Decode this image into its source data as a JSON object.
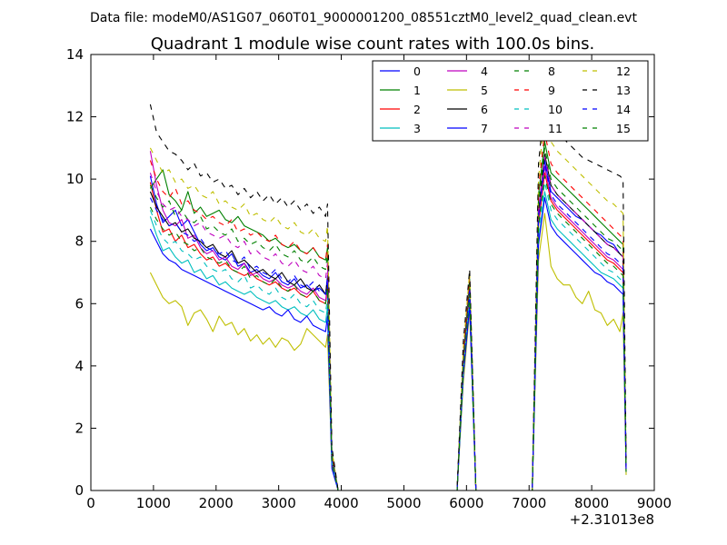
{
  "suptitle": "Data file: modeM0/AS1G07_060T01_9000001200_08551cztM0_level2_quad_clean.evt",
  "chart_data": {
    "type": "line",
    "title": "Quadrant 1 module wise count rates with 100.0s bins.",
    "xlabel": "",
    "ylabel": "",
    "x_offset_label": "+2.31013e8",
    "xlim": [
      0,
      9000
    ],
    "ylim": [
      0,
      14
    ],
    "xticks": [
      "0",
      "1000",
      "2000",
      "3000",
      "4000",
      "5000",
      "6000",
      "7000",
      "8000",
      "9000"
    ],
    "yticks": [
      "0",
      "2",
      "4",
      "6",
      "8",
      "10",
      "12",
      "14"
    ],
    "grid": false,
    "legend": {
      "placement": "top-right",
      "columns": 4
    },
    "x": [
      950,
      1050,
      1150,
      1250,
      1350,
      1450,
      1550,
      1650,
      1750,
      1850,
      1950,
      2050,
      2150,
      2250,
      2350,
      2450,
      2550,
      2650,
      2750,
      2850,
      2950,
      3050,
      3150,
      3250,
      3350,
      3450,
      3550,
      3650,
      3750,
      3780,
      3850,
      3950,
      4050,
      5850,
      5950,
      6050,
      6150,
      6250,
      7050,
      7150,
      7250,
      7350,
      7450,
      7550,
      7650,
      7750,
      7850,
      7950,
      8050,
      8150,
      8250,
      8350,
      8450,
      8500,
      8550
    ],
    "series": [
      {
        "name": "0",
        "color": "#0000ff",
        "dash": false,
        "values": [
          10.1,
          9.2,
          8.6,
          8.8,
          9.0,
          8.5,
          8.7,
          8.3,
          7.9,
          7.7,
          7.8,
          7.5,
          7.4,
          7.6,
          7.2,
          7.3,
          7.0,
          7.1,
          6.9,
          6.8,
          7.0,
          6.7,
          6.6,
          6.8,
          6.5,
          6.6,
          6.4,
          6.5,
          6.3,
          6.9,
          1.0,
          0.0,
          0.0,
          0.0,
          4.1,
          6.6,
          0.0,
          0.0,
          0.0,
          8.9,
          10.6,
          9.6,
          9.4,
          9.2,
          9.0,
          8.8,
          8.7,
          8.5,
          8.3,
          8.2,
          8.0,
          7.9,
          7.6,
          7.5,
          0.7
        ]
      },
      {
        "name": "1",
        "color": "#008000",
        "dash": false,
        "values": [
          9.7,
          10.0,
          10.3,
          9.5,
          9.3,
          9.0,
          9.6,
          8.9,
          9.1,
          8.8,
          8.9,
          9.0,
          8.7,
          8.6,
          8.8,
          8.5,
          8.4,
          8.3,
          8.2,
          8.0,
          8.1,
          7.9,
          7.8,
          7.9,
          7.7,
          7.6,
          7.8,
          7.5,
          7.4,
          7.8,
          1.2,
          0.0,
          0.0,
          0.0,
          4.3,
          6.8,
          0.0,
          0.0,
          0.0,
          9.5,
          11.2,
          10.2,
          10.0,
          9.8,
          9.6,
          9.4,
          9.2,
          9.0,
          8.8,
          8.6,
          8.4,
          8.2,
          8.0,
          7.9,
          0.6
        ]
      },
      {
        "name": "2",
        "color": "#ff0000",
        "dash": false,
        "values": [
          9.9,
          9.0,
          8.3,
          8.4,
          8.0,
          8.2,
          7.8,
          7.9,
          7.6,
          7.4,
          7.5,
          7.2,
          7.3,
          7.1,
          7.0,
          6.9,
          7.0,
          6.8,
          6.7,
          6.6,
          6.7,
          6.5,
          6.4,
          6.5,
          6.3,
          6.2,
          6.4,
          6.1,
          6.0,
          6.5,
          0.9,
          0.0,
          0.0,
          0.0,
          4.0,
          6.3,
          0.0,
          0.0,
          0.0,
          8.5,
          10.2,
          9.3,
          9.0,
          8.8,
          8.6,
          8.4,
          8.2,
          8.0,
          7.8,
          7.6,
          7.4,
          7.3,
          7.1,
          7.0,
          0.8
        ]
      },
      {
        "name": "3",
        "color": "#00bfbf",
        "dash": false,
        "values": [
          8.8,
          8.2,
          7.7,
          7.8,
          7.5,
          7.3,
          7.4,
          7.0,
          7.1,
          6.8,
          6.9,
          6.6,
          6.7,
          6.5,
          6.4,
          6.3,
          6.4,
          6.2,
          6.1,
          6.0,
          6.1,
          5.9,
          5.8,
          5.9,
          5.7,
          5.6,
          5.8,
          5.5,
          5.4,
          5.9,
          0.8,
          0.0,
          0.0,
          0.0,
          3.8,
          6.0,
          0.0,
          0.0,
          0.0,
          8.0,
          9.6,
          8.7,
          8.4,
          8.2,
          8.0,
          7.8,
          7.6,
          7.4,
          7.2,
          7.0,
          6.9,
          6.8,
          6.6,
          6.5,
          0.7
        ]
      },
      {
        "name": "4",
        "color": "#bf00bf",
        "dash": false,
        "values": [
          10.9,
          9.8,
          9.0,
          8.6,
          8.5,
          8.7,
          8.1,
          8.2,
          7.8,
          7.6,
          7.7,
          7.4,
          7.5,
          7.2,
          7.1,
          7.3,
          6.9,
          7.0,
          6.8,
          6.7,
          6.8,
          6.6,
          6.5,
          6.6,
          6.4,
          6.3,
          6.5,
          6.2,
          6.1,
          6.6,
          0.9,
          0.0,
          0.0,
          0.0,
          4.0,
          6.4,
          0.0,
          0.0,
          0.0,
          8.7,
          10.4,
          9.4,
          9.1,
          8.9,
          8.7,
          8.5,
          8.3,
          8.1,
          7.9,
          7.7,
          7.5,
          7.4,
          7.2,
          7.1,
          0.8
        ]
      },
      {
        "name": "5",
        "color": "#bfbf00",
        "dash": false,
        "values": [
          7.0,
          6.6,
          6.2,
          6.0,
          6.1,
          5.9,
          5.3,
          5.7,
          5.8,
          5.5,
          5.1,
          5.6,
          5.3,
          5.4,
          5.0,
          5.2,
          4.8,
          5.0,
          4.7,
          4.9,
          4.6,
          4.9,
          4.8,
          4.5,
          4.7,
          5.2,
          5.0,
          4.8,
          4.6,
          5.0,
          0.8,
          0.0,
          0.0,
          0.0,
          3.5,
          5.8,
          0.0,
          0.0,
          0.0,
          7.4,
          8.9,
          7.2,
          6.8,
          6.6,
          6.6,
          6.2,
          6.0,
          6.4,
          5.8,
          5.7,
          5.3,
          5.5,
          5.1,
          5.7,
          0.5
        ]
      },
      {
        "name": "6",
        "color": "#000000",
        "dash": false,
        "values": [
          9.6,
          9.1,
          8.8,
          8.5,
          8.6,
          8.3,
          8.4,
          8.1,
          8.0,
          7.8,
          7.9,
          7.6,
          7.5,
          7.7,
          7.3,
          7.4,
          7.2,
          7.0,
          7.1,
          6.9,
          6.8,
          7.0,
          6.7,
          6.6,
          6.8,
          6.5,
          6.4,
          6.6,
          6.3,
          6.8,
          1.0,
          0.0,
          0.0,
          0.0,
          4.2,
          6.7,
          0.0,
          0.0,
          0.0,
          9.0,
          10.8,
          9.8,
          9.5,
          9.3,
          9.1,
          8.9,
          8.7,
          8.5,
          8.3,
          8.1,
          7.9,
          7.8,
          7.6,
          7.5,
          0.8
        ]
      },
      {
        "name": "7",
        "color": "#0000ff",
        "dash": false,
        "values": [
          8.4,
          8.0,
          7.6,
          7.4,
          7.3,
          7.1,
          7.0,
          6.9,
          6.8,
          6.7,
          6.6,
          6.5,
          6.4,
          6.3,
          6.2,
          6.1,
          6.0,
          5.9,
          5.8,
          5.9,
          5.7,
          5.6,
          5.8,
          5.5,
          5.4,
          5.6,
          5.3,
          5.2,
          5.1,
          5.6,
          0.7,
          0.0,
          0.0,
          0.0,
          3.7,
          5.9,
          0.0,
          0.0,
          0.0,
          7.9,
          9.4,
          8.5,
          8.2,
          8.0,
          7.8,
          7.6,
          7.4,
          7.2,
          7.0,
          6.9,
          6.7,
          6.6,
          6.4,
          6.3,
          0.6
        ]
      },
      {
        "name": "8",
        "color": "#008000",
        "dash": true,
        "values": [
          9.8,
          9.4,
          9.1,
          9.3,
          8.8,
          9.0,
          8.7,
          8.6,
          8.8,
          8.4,
          8.5,
          8.3,
          8.2,
          8.4,
          8.0,
          8.1,
          7.9,
          8.0,
          7.8,
          7.7,
          7.9,
          7.6,
          7.5,
          7.7,
          7.4,
          7.3,
          7.5,
          7.2,
          7.1,
          7.6,
          1.1,
          0.0,
          0.0,
          0.0,
          4.2,
          6.7,
          0.0,
          0.0,
          0.0,
          9.2,
          11.0,
          10.0,
          9.7,
          9.5,
          9.3,
          9.1,
          8.9,
          8.7,
          8.5,
          8.3,
          8.1,
          8.0,
          7.8,
          7.7,
          0.7
        ]
      },
      {
        "name": "9",
        "color": "#ff0000",
        "dash": true,
        "values": [
          10.6,
          10.0,
          9.6,
          9.4,
          9.7,
          9.2,
          9.3,
          9.0,
          8.9,
          8.7,
          8.8,
          8.6,
          8.5,
          8.7,
          8.3,
          8.4,
          8.2,
          8.3,
          8.1,
          8.0,
          8.2,
          7.9,
          7.8,
          8.0,
          7.7,
          7.6,
          7.8,
          7.5,
          7.4,
          7.9,
          1.2,
          0.0,
          0.0,
          0.0,
          4.4,
          6.9,
          0.0,
          0.0,
          0.0,
          9.7,
          11.5,
          10.5,
          10.2,
          10.0,
          9.8,
          9.6,
          9.4,
          9.2,
          9.0,
          8.8,
          8.6,
          8.4,
          8.2,
          8.1,
          0.8
        ]
      },
      {
        "name": "10",
        "color": "#00bfbf",
        "dash": true,
        "values": [
          9.0,
          8.5,
          8.1,
          7.9,
          8.0,
          7.7,
          7.6,
          7.4,
          7.5,
          7.2,
          7.1,
          7.0,
          7.1,
          6.8,
          6.7,
          6.9,
          6.5,
          6.6,
          6.4,
          6.3,
          6.5,
          6.2,
          6.1,
          6.3,
          6.0,
          5.9,
          6.1,
          5.8,
          5.7,
          6.2,
          0.9,
          0.0,
          0.0,
          0.0,
          3.9,
          6.2,
          0.0,
          0.0,
          0.0,
          8.3,
          9.9,
          9.0,
          8.7,
          8.5,
          8.3,
          8.1,
          7.9,
          7.7,
          7.5,
          7.3,
          7.1,
          7.0,
          6.8,
          6.7,
          0.7
        ]
      },
      {
        "name": "11",
        "color": "#bf00bf",
        "dash": true,
        "values": [
          10.2,
          9.6,
          9.2,
          9.0,
          9.1,
          8.8,
          8.7,
          8.5,
          8.6,
          8.3,
          8.2,
          8.1,
          8.2,
          7.9,
          7.8,
          8.0,
          7.6,
          7.7,
          7.5,
          7.4,
          7.6,
          7.3,
          7.2,
          7.4,
          7.1,
          7.0,
          7.2,
          6.9,
          6.8,
          7.3,
          1.0,
          0.0,
          0.0,
          0.0,
          4.1,
          6.5,
          0.0,
          0.0,
          0.0,
          9.0,
          10.7,
          9.8,
          9.5,
          9.3,
          9.1,
          8.9,
          8.7,
          8.5,
          8.3,
          8.1,
          7.9,
          7.8,
          7.6,
          7.5,
          0.7
        ]
      },
      {
        "name": "12",
        "color": "#bfbf00",
        "dash": true,
        "values": [
          11.0,
          10.6,
          10.2,
          10.3,
          9.9,
          10.0,
          9.7,
          9.8,
          9.5,
          9.4,
          9.6,
          9.2,
          9.3,
          9.1,
          9.0,
          9.2,
          8.8,
          8.9,
          8.7,
          8.6,
          8.8,
          8.5,
          8.4,
          8.6,
          8.3,
          8.2,
          8.4,
          8.1,
          8.0,
          8.5,
          1.3,
          0.0,
          0.0,
          0.0,
          4.6,
          7.0,
          0.0,
          0.0,
          0.0,
          10.0,
          12.2,
          11.2,
          10.9,
          10.7,
          10.5,
          10.3,
          10.1,
          9.9,
          9.7,
          9.5,
          9.3,
          9.2,
          9.0,
          8.9,
          0.9
        ]
      },
      {
        "name": "13",
        "color": "#000000",
        "dash": true,
        "values": [
          12.4,
          11.5,
          11.2,
          10.9,
          10.8,
          10.6,
          10.3,
          10.5,
          10.1,
          10.2,
          9.9,
          10.0,
          9.7,
          9.8,
          9.5,
          9.7,
          9.4,
          9.6,
          9.3,
          9.5,
          9.2,
          9.4,
          9.1,
          9.3,
          9.0,
          9.2,
          8.9,
          9.1,
          8.8,
          9.2,
          1.4,
          0.0,
          0.0,
          0.0,
          4.8,
          7.1,
          0.0,
          0.0,
          0.0,
          10.5,
          12.5,
          11.8,
          11.5,
          11.3,
          11.1,
          10.9,
          10.7,
          10.6,
          10.5,
          10.4,
          10.3,
          10.2,
          10.1,
          10.0,
          1.0
        ]
      },
      {
        "name": "14",
        "color": "#0000ff",
        "dash": true,
        "values": [
          9.4,
          9.0,
          8.7,
          8.5,
          8.6,
          8.3,
          8.2,
          8.0,
          8.1,
          7.8,
          7.7,
          7.6,
          7.7,
          7.4,
          7.3,
          7.5,
          7.1,
          7.2,
          7.0,
          6.9,
          7.1,
          6.8,
          6.7,
          6.9,
          6.6,
          6.5,
          6.7,
          6.4,
          6.3,
          6.8,
          1.0,
          0.0,
          0.0,
          0.0,
          4.0,
          6.4,
          0.0,
          0.0,
          0.0,
          8.8,
          10.5,
          9.5,
          9.2,
          9.0,
          8.8,
          8.6,
          8.4,
          8.2,
          8.0,
          7.8,
          7.6,
          7.5,
          7.3,
          7.2,
          0.7
        ]
      },
      {
        "name": "15",
        "color": "#008000",
        "dash": true,
        "values": [
          9.1,
          8.7,
          8.4,
          8.2,
          8.3,
          8.0,
          7.9,
          7.7,
          7.8,
          7.5,
          7.4,
          7.3,
          7.4,
          7.1,
          7.0,
          7.2,
          6.8,
          6.9,
          6.7,
          6.6,
          6.8,
          6.5,
          6.4,
          6.6,
          6.3,
          6.2,
          6.4,
          6.1,
          6.0,
          6.5,
          0.9,
          0.0,
          0.0,
          0.0,
          3.9,
          6.3,
          0.0,
          0.0,
          0.0,
          8.5,
          10.1,
          9.2,
          8.9,
          8.7,
          8.5,
          8.3,
          8.1,
          7.9,
          7.7,
          7.5,
          7.3,
          7.2,
          7.0,
          6.9,
          0.6
        ]
      }
    ]
  }
}
